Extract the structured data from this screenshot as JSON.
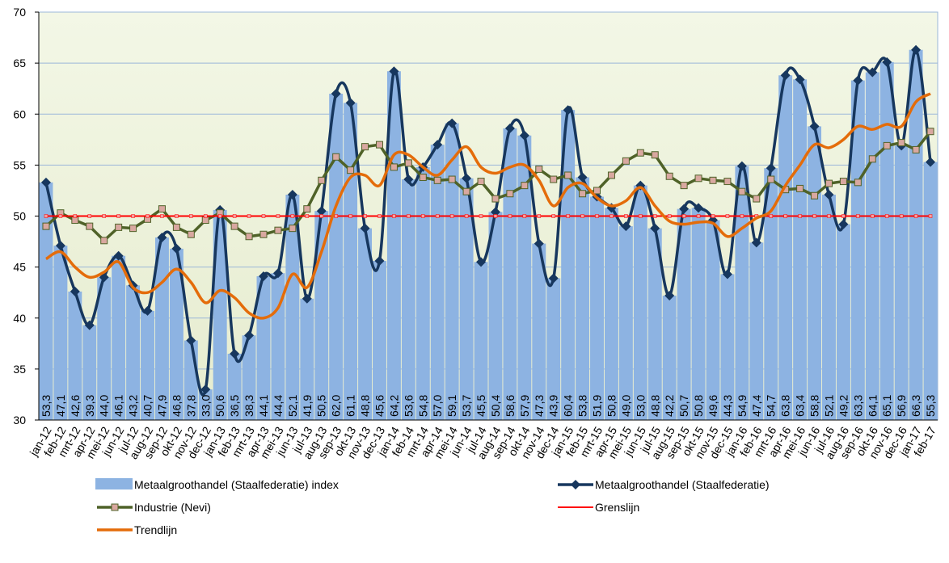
{
  "chart_data": {
    "type": "combo",
    "categories": [
      "jan-12",
      "feb-12",
      "mrt-12",
      "apr-12",
      "mei-12",
      "jun-12",
      "jul-12",
      "aug-12",
      "sep-12",
      "okt-12",
      "nov-12",
      "dec-12",
      "jan-13",
      "feb-13",
      "mrt-13",
      "apr-13",
      "mei-13",
      "jun-13",
      "jul-13",
      "aug-13",
      "sep-13",
      "okt-13",
      "nov-13",
      "dec-13",
      "jan-14",
      "feb-14",
      "mrt-14",
      "apr-14",
      "mei-14",
      "jun-14",
      "jul-14",
      "aug-14",
      "sep-14",
      "okt-14",
      "nov-14",
      "dec-14",
      "jan-15",
      "feb-15",
      "mrt-15",
      "apr-15",
      "mei-15",
      "jun-15",
      "jul-15",
      "aug-15",
      "sep-15",
      "okt-15",
      "nov-15",
      "dec-15",
      "jan-16",
      "feb-16",
      "mrt-16",
      "apr-16",
      "mei-16",
      "jun-16",
      "jul-16",
      "aug-16",
      "sep-16",
      "okt-16",
      "nov-16",
      "dec-16",
      "jan-17",
      "feb-17"
    ],
    "ylim": [
      30,
      70
    ],
    "yticks": [
      30,
      35,
      40,
      45,
      50,
      55,
      60,
      65,
      70
    ],
    "series": [
      {
        "name": "Metaalgroothandel (Staalfederatie) index",
        "kind": "bar",
        "color": "#8db3e2",
        "values": [
          53.3,
          47.1,
          42.6,
          39.3,
          44.0,
          46.1,
          43.2,
          40.7,
          47.9,
          46.8,
          37.8,
          33.0,
          50.6,
          36.5,
          38.3,
          44.1,
          44.4,
          52.1,
          41.9,
          50.5,
          62.0,
          61.1,
          48.8,
          45.6,
          64.2,
          53.6,
          54.8,
          57.0,
          59.1,
          53.7,
          45.5,
          50.4,
          58.6,
          57.9,
          47.3,
          43.9,
          60.4,
          53.8,
          51.9,
          50.8,
          49.0,
          53.0,
          48.8,
          42.2,
          50.7,
          50.8,
          49.6,
          44.3,
          54.9,
          47.4,
          54.7,
          63.8,
          63.4,
          58.8,
          52.1,
          49.2,
          63.3,
          64.1,
          65.1,
          56.9,
          66.3,
          55.3
        ],
        "value_labels": [
          "53,3",
          "47,1",
          "42,6",
          "39,3",
          "44,0",
          "46,1",
          "43,2",
          "40,7",
          "47,9",
          "46,8",
          "37,8",
          "33,0",
          "50,6",
          "36,5",
          "38,3",
          "44,1",
          "44,4",
          "52,1",
          "41,9",
          "50,5",
          "62,0",
          "61,1",
          "48,8",
          "45,6",
          "64,2",
          "53,6",
          "54,8",
          "57,0",
          "59,1",
          "53,7",
          "45,5",
          "50,4",
          "58,6",
          "57,9",
          "47,3",
          "43,9",
          "60,4",
          "53,8",
          "51,9",
          "50,8",
          "49,0",
          "53,0",
          "48,8",
          "42,2",
          "50,7",
          "50,8",
          "49,6",
          "44,3",
          "54,9",
          "47,4",
          "54,7",
          "63,8",
          "63,4",
          "58,8",
          "52,1",
          "49,2",
          "63,3",
          "64,1",
          "65,1",
          "56,9",
          "66,3",
          "55,3"
        ]
      },
      {
        "name": "Metaalgroothandel (Staalfederatie)",
        "kind": "line",
        "marker": "diamond",
        "color": "#17375e",
        "values": [
          53.3,
          47.1,
          42.6,
          39.3,
          44.0,
          46.1,
          43.2,
          40.7,
          47.9,
          46.8,
          37.8,
          33.0,
          50.6,
          36.5,
          38.3,
          44.1,
          44.4,
          52.1,
          41.9,
          50.5,
          62.0,
          61.1,
          48.8,
          45.6,
          64.2,
          53.6,
          54.8,
          57.0,
          59.1,
          53.7,
          45.5,
          50.4,
          58.6,
          57.9,
          47.3,
          43.9,
          60.4,
          53.8,
          51.9,
          50.8,
          49.0,
          53.0,
          48.8,
          42.2,
          50.7,
          50.8,
          49.6,
          44.3,
          54.9,
          47.4,
          54.7,
          63.8,
          63.4,
          58.8,
          52.1,
          49.2,
          63.3,
          64.1,
          65.1,
          56.9,
          66.3,
          55.3
        ]
      },
      {
        "name": "Industrie (Nevi)",
        "kind": "line",
        "marker": "square",
        "color": "#4f6228",
        "values": [
          49.0,
          50.3,
          49.6,
          49.0,
          47.6,
          48.9,
          48.8,
          49.7,
          50.7,
          48.9,
          48.2,
          49.6,
          50.3,
          49.0,
          48.0,
          48.2,
          48.6,
          48.8,
          50.7,
          53.5,
          55.8,
          54.5,
          56.8,
          57.0,
          54.8,
          55.2,
          53.8,
          53.5,
          53.6,
          52.4,
          53.4,
          51.7,
          52.2,
          53.0,
          54.6,
          53.6,
          54.0,
          52.2,
          52.5,
          54.0,
          55.4,
          56.2,
          56.0,
          53.9,
          53.0,
          53.7,
          53.5,
          53.4,
          52.4,
          51.7,
          53.6,
          52.6,
          52.7,
          52.0,
          53.2,
          53.4,
          53.3,
          55.6,
          56.9,
          57.2,
          56.5,
          58.3
        ]
      },
      {
        "name": "Grenslijn",
        "kind": "line",
        "marker": "dot",
        "color": "#ff0000",
        "values": [
          50,
          50,
          50,
          50,
          50,
          50,
          50,
          50,
          50,
          50,
          50,
          50,
          50,
          50,
          50,
          50,
          50,
          50,
          50,
          50,
          50,
          50,
          50,
          50,
          50,
          50,
          50,
          50,
          50,
          50,
          50,
          50,
          50,
          50,
          50,
          50,
          50,
          50,
          50,
          50,
          50,
          50,
          50,
          50,
          50,
          50,
          50,
          50,
          50,
          50,
          50,
          50,
          50,
          50,
          50,
          50,
          50,
          50,
          50,
          50,
          50,
          50
        ]
      },
      {
        "name": "Trendlijn",
        "kind": "line",
        "color": "#e46c0a",
        "values": [
          45.8,
          46.5,
          45.0,
          44.0,
          44.5,
          45.5,
          43.0,
          42.5,
          43.5,
          44.8,
          43.5,
          41.5,
          42.7,
          42.0,
          40.5,
          40.0,
          41.0,
          44.3,
          43.0,
          46.5,
          51,
          53.8,
          54,
          53,
          56,
          56,
          54.8,
          54,
          55.5,
          56.8,
          54.8,
          54.2,
          54.8,
          55,
          53.5,
          51,
          52.8,
          53.2,
          51.8,
          51,
          51.5,
          52.8,
          51,
          49.5,
          49.2,
          49.4,
          49.3,
          48,
          48.8,
          49.8,
          50.5,
          53,
          55,
          57,
          56.7,
          57.5,
          58.8,
          58.5,
          59,
          58.8,
          61.2,
          62
        ]
      }
    ]
  }
}
